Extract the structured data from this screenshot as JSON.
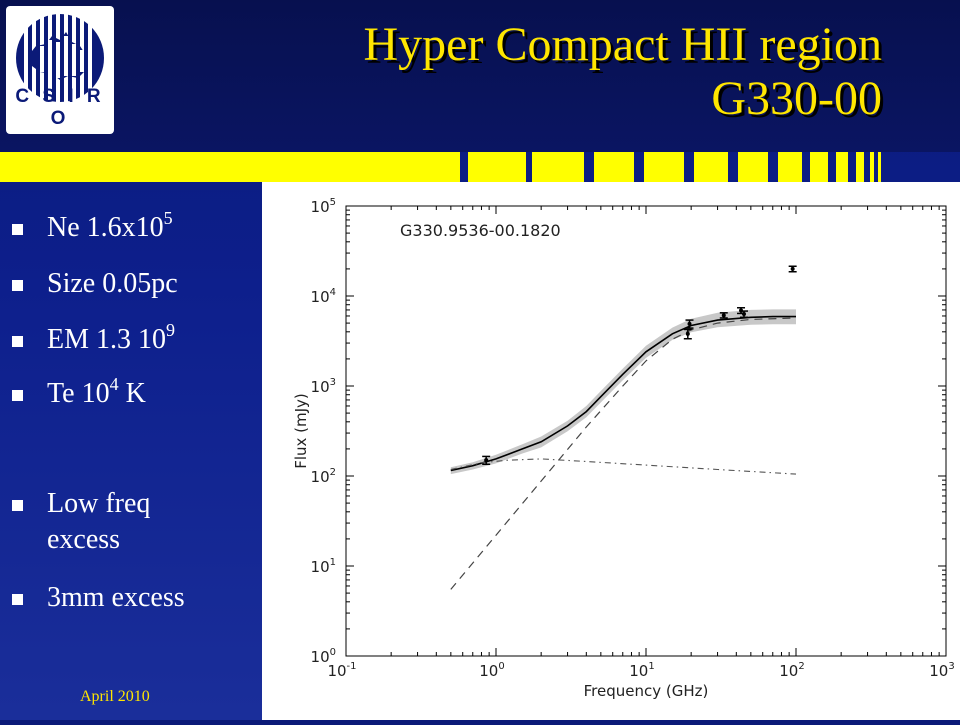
{
  "logo": {
    "text": "CSIRO",
    "caption": "C S I R O"
  },
  "title": {
    "line1": "Hyper Compact HII region",
    "line2": "G330-00"
  },
  "colors": {
    "title": "#ffe600",
    "background": "#0d1f8c",
    "stripe": "#ffff00",
    "footer": "#ffe600"
  },
  "bullets": [
    {
      "text": "Ne 1.6x10",
      "sup": "5",
      "tail": ""
    },
    {
      "text": "Size 0.05pc",
      "sup": "",
      "tail": ""
    },
    {
      "text": "EM 1.3 10",
      "sup": "9",
      "tail": ""
    },
    {
      "text": "Te 10",
      "sup": "4",
      "tail": " K"
    },
    {
      "text": "Low freq excess",
      "sup": "",
      "tail": ""
    },
    {
      "text": "3mm excess",
      "sup": "",
      "tail": ""
    }
  ],
  "footer": {
    "date": "April 2010"
  },
  "chart_data": {
    "type": "scatter",
    "annotation": "G330.9536-00.1820",
    "xlabel": "Frequency (GHz)",
    "ylabel": "Flux (mJy)",
    "xscale": "log",
    "yscale": "log",
    "xlim": [
      0.1,
      1000
    ],
    "ylim": [
      1,
      100000
    ],
    "xticks": [
      {
        "value": 0.1,
        "base": "10",
        "exp": "-1"
      },
      {
        "value": 1,
        "base": "10",
        "exp": "0"
      },
      {
        "value": 10,
        "base": "10",
        "exp": "1"
      },
      {
        "value": 100,
        "base": "10",
        "exp": "2"
      },
      {
        "value": 1000,
        "base": "10",
        "exp": "3"
      }
    ],
    "yticks": [
      {
        "value": 1,
        "base": "10",
        "exp": "0"
      },
      {
        "value": 10,
        "base": "10",
        "exp": "1"
      },
      {
        "value": 100,
        "base": "10",
        "exp": "2"
      },
      {
        "value": 1000,
        "base": "10",
        "exp": "3"
      },
      {
        "value": 10000,
        "base": "10",
        "exp": "4"
      },
      {
        "value": 100000,
        "base": "10",
        "exp": "5"
      }
    ],
    "points": [
      {
        "x": 0.86,
        "y": 150,
        "err": 15
      },
      {
        "x": 19,
        "y": 3800,
        "err": 450
      },
      {
        "x": 19.5,
        "y": 4900,
        "err": 500
      },
      {
        "x": 33,
        "y": 6100,
        "err": 400
      },
      {
        "x": 43,
        "y": 6900,
        "err": 500
      },
      {
        "x": 45,
        "y": 6300,
        "err": 500
      },
      {
        "x": 95,
        "y": 20000,
        "err": 1400
      }
    ],
    "series": [
      {
        "style": "solid",
        "x": [
          0.5,
          0.7,
          1,
          1.5,
          2,
          3,
          4,
          5,
          7,
          10,
          15,
          20,
          30,
          50,
          70,
          100
        ],
        "y": [
          115,
          130,
          155,
          200,
          240,
          360,
          520,
          760,
          1350,
          2400,
          3800,
          4700,
          5400,
          5800,
          5900,
          5900
        ]
      },
      {
        "style": "dashed",
        "x": [
          0.5,
          1,
          2,
          4,
          7,
          10,
          15,
          20,
          30,
          50,
          100
        ],
        "y": [
          5.5,
          22,
          88,
          350,
          1000,
          1900,
          3300,
          4200,
          5000,
          5500,
          5700
        ]
      },
      {
        "style": "dashdot",
        "x": [
          0.5,
          0.8,
          1.2,
          2,
          4,
          10,
          30,
          100
        ],
        "y": [
          118,
          140,
          150,
          155,
          145,
          132,
          118,
          105
        ]
      }
    ],
    "band": {
      "x": [
        0.5,
        0.7,
        1,
        1.5,
        2,
        3,
        4,
        5,
        7,
        10,
        15,
        20,
        30,
        50,
        70,
        100
      ],
      "upper": [
        125,
        142,
        172,
        225,
        275,
        410,
        600,
        880,
        1560,
        2800,
        4450,
        5600,
        6500,
        7000,
        7100,
        7100
      ],
      "lower": [
        105,
        118,
        138,
        178,
        208,
        315,
        450,
        655,
        1160,
        2050,
        3250,
        3950,
        4500,
        4800,
        4850,
        4850
      ]
    },
    "grid": false,
    "legend": "none"
  }
}
